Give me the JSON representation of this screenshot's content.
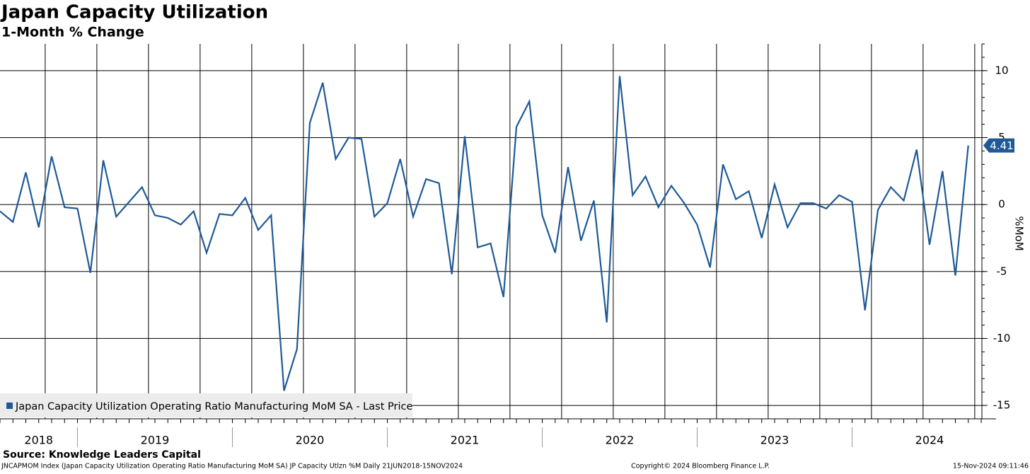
{
  "chart_data": {
    "type": "line",
    "title": "Japan Capacity Utilization",
    "subtitle": "1-Month % Change",
    "x_labels": [
      "2018",
      "2019",
      "2020",
      "2021",
      "2022",
      "2023",
      "2024"
    ],
    "series": [
      {
        "name": "Japan Capacity Utilization Operating Ratio Manufacturing MoM SA - Last Price",
        "color": "#1f5a96",
        "values": [
          -0.5,
          -1.3,
          2.4,
          -1.7,
          3.6,
          -0.2,
          -0.3,
          -5.1,
          3.3,
          -0.9,
          0.2,
          1.3,
          -0.8,
          -1.0,
          -1.5,
          -0.5,
          -3.6,
          -0.7,
          -0.8,
          0.5,
          -1.9,
          -0.8,
          -13.9,
          -10.8,
          6.1,
          9.1,
          3.4,
          5.0,
          4.9,
          -0.9,
          0.1,
          3.4,
          -0.9,
          1.9,
          1.6,
          -5.2,
          5.1,
          -3.2,
          -2.9,
          -6.9,
          5.8,
          7.7,
          -0.8,
          -3.6,
          2.8,
          -2.7,
          0.3,
          -8.8,
          9.6,
          0.7,
          2.1,
          -0.2,
          1.4,
          0.1,
          -1.5,
          -4.7,
          3.0,
          0.4,
          1.0,
          -2.5,
          1.5,
          -1.7,
          0.1,
          0.1,
          -0.3,
          0.7,
          0.2,
          -7.9,
          -0.4,
          1.3,
          0.3,
          4.1,
          -3.0,
          2.5,
          -5.3,
          4.41
        ]
      }
    ],
    "ylim": [
      -16,
      12
    ],
    "yticks": [
      10,
      5,
      0,
      -5,
      -10,
      -15
    ],
    "ylabel": "%MoM",
    "grid": true,
    "source": "Source: Knowledge Leaders Capital",
    "footer_left": "JNCAPMOM Index (Japan Capacity Utilization Operating Ratio Manufacturing MoM SA) JP Capacity Utlzn %M  Daily 21JUN2018-15NOV2024",
    "footer_center": "Copyright© 2024 Bloomberg Finance L.P.",
    "footer_right": "15-Nov-2024 09:11:46"
  }
}
